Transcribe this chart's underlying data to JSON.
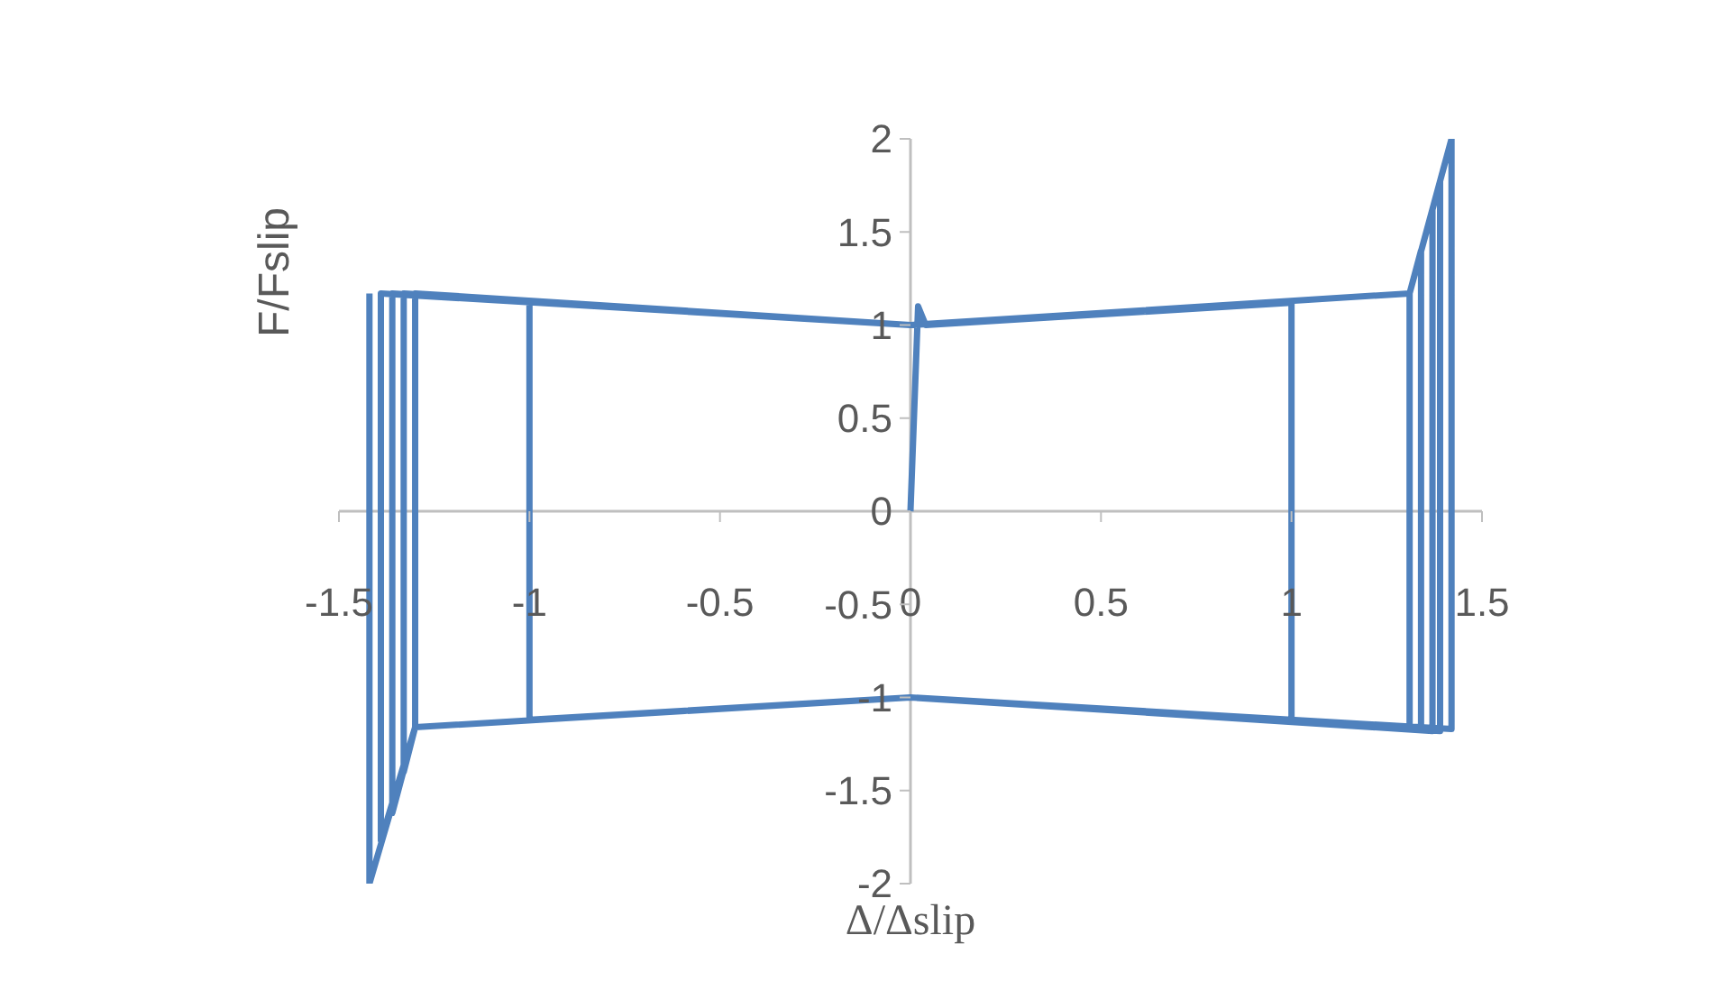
{
  "chart_data": {
    "type": "line",
    "xlabel": "Δ/Δslip",
    "ylabel": "F/Fslip",
    "marker": "none",
    "xlim": [
      -1.5,
      1.5
    ],
    "xticks": [
      -1.5,
      -1,
      -0.5,
      0,
      0.5,
      1,
      1.5
    ],
    "ylim": [
      -2,
      2
    ],
    "yticks": [
      -2,
      -1.5,
      -1,
      -0.5,
      0,
      0.5,
      1,
      1.5,
      2
    ],
    "series": [
      {
        "color": "#4f81bd",
        "x": [
          0,
          0.02,
          0.04,
          1.0,
          1.0,
          0,
          -1.0,
          -1.0,
          0,
          1.31,
          1.31,
          0,
          -1.3,
          -1.3,
          0,
          1.31,
          1.34,
          1.34,
          0,
          -1.3,
          -1.33,
          -1.33,
          0,
          1.31,
          1.37,
          1.37,
          0,
          -1.3,
          -1.36,
          -1.36,
          0,
          1.31,
          1.39,
          1.39,
          0,
          -1.3,
          -1.39,
          -1.39,
          0,
          1.31,
          1.42,
          1.42,
          0,
          -1.3,
          -1.42,
          -1.42
        ],
        "values": [
          0,
          1.1,
          1.0,
          1.12,
          -1.12,
          -1.0,
          -1.12,
          1.13,
          1.0,
          1.17,
          -1.17,
          -1.0,
          -1.16,
          1.17,
          1.0,
          1.17,
          1.4,
          -1.17,
          -1.0,
          -1.16,
          -1.4,
          1.17,
          1.0,
          1.17,
          1.62,
          -1.18,
          -1.0,
          -1.16,
          -1.62,
          1.17,
          1.0,
          1.17,
          1.77,
          -1.18,
          -1.0,
          -1.16,
          -1.77,
          1.17,
          1.0,
          1.17,
          2.0,
          -1.17,
          -1.0,
          -1.16,
          -2.0,
          1.17
        ]
      }
    ]
  }
}
